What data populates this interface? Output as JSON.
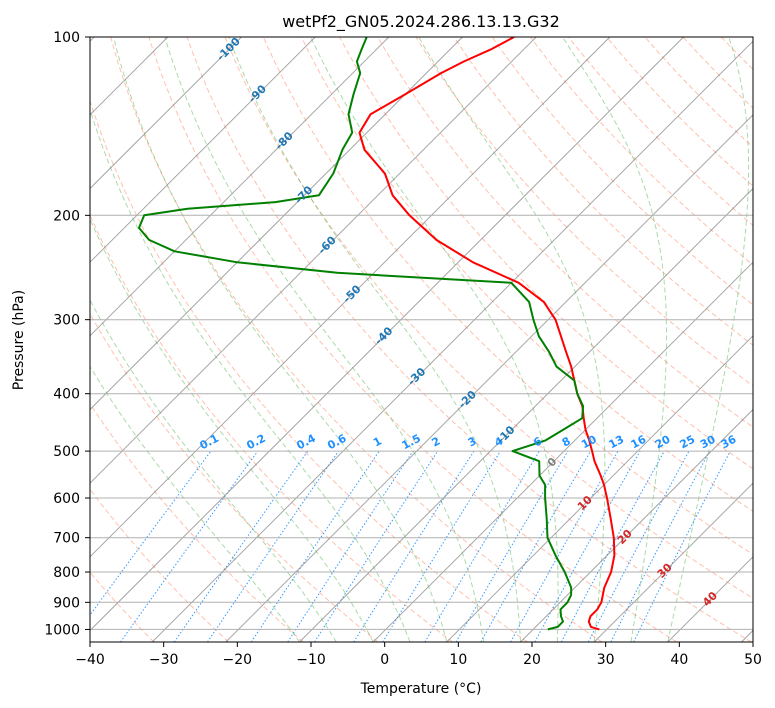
{
  "chart_data": {
    "type": "line",
    "subtype": "skew-t log-p",
    "title": "wetPf2_GN05.2024.286.13.13.G32",
    "xlabel": "Temperature (°C)",
    "ylabel": "Pressure (hPa)",
    "xlim": [
      -40,
      50
    ],
    "ylim": [
      1050,
      100
    ],
    "y_scale": "log",
    "x_ticks": [
      -40,
      -30,
      -20,
      -10,
      0,
      10,
      20,
      30,
      40,
      50
    ],
    "y_ticks": [
      1000,
      900,
      800,
      700,
      600,
      500,
      400,
      300,
      200,
      100
    ],
    "grid": true,
    "colors": {
      "temperature": "#ff0000",
      "dewpoint": "#008000",
      "dry_adiabat": "#ff8c69",
      "moist_adiabat": "#2ca02c",
      "mixing_ratio": "#1e90ff",
      "isotherm": "#808080",
      "label_blue": "#1f77b4",
      "label_red": "#d62728"
    },
    "series": [
      {
        "key": "temperature",
        "pressure": [
          1000,
          990,
          970,
          950,
          925,
          900,
          875,
          850,
          800,
          750,
          700,
          650,
          600,
          570,
          550,
          520,
          500,
          480,
          460,
          440,
          420,
          400,
          380,
          360,
          340,
          320,
          300,
          280,
          260,
          240,
          220,
          200,
          185,
          170,
          155,
          145,
          135,
          125,
          115,
          110,
          105,
          100
        ],
        "temperature": [
          29,
          27.5,
          26.5,
          26,
          26,
          25.6,
          24.8,
          24,
          22.8,
          21,
          18.5,
          15.5,
          12.2,
          10,
          8.3,
          5.5,
          3.8,
          2,
          0,
          -1.8,
          -3.6,
          -6,
          -8.2,
          -10.5,
          -13.2,
          -16,
          -19,
          -23,
          -29,
          -38,
          -46,
          -53,
          -58,
          -62,
          -68,
          -71,
          -72,
          -70,
          -68,
          -66.5,
          -64.5,
          -63
        ]
      },
      {
        "key": "dewpoint",
        "pressure": [
          1000,
          990,
          970,
          950,
          925,
          900,
          875,
          850,
          800,
          750,
          700,
          650,
          600,
          570,
          550,
          520,
          500,
          480,
          460,
          440,
          420,
          400,
          380,
          360,
          340,
          320,
          300,
          280,
          260,
          250,
          240,
          230,
          220,
          210,
          200,
          195,
          190,
          185,
          170,
          155,
          145,
          135,
          125,
          115,
          110,
          105,
          100
        ],
        "temperature": [
          22,
          23,
          23,
          22,
          21,
          21,
          20.5,
          19.5,
          16.5,
          13,
          9.5,
          6.8,
          3.8,
          2,
          0,
          -2,
          -7,
          -4,
          -3,
          -2,
          -3.5,
          -6,
          -8.2,
          -12.5,
          -15.5,
          -19,
          -22,
          -25,
          -30,
          -55,
          -70,
          -80,
          -85,
          -88,
          -89,
          -84,
          -73,
          -68,
          -69,
          -71,
          -72,
          -75,
          -77,
          -79,
          -81,
          -82,
          -83
        ]
      }
    ],
    "isotherm_labels": [
      "0",
      "10",
      "20",
      "30",
      "40"
    ],
    "isotherm_label_values": [
      0,
      10,
      20,
      30,
      40
    ],
    "isotherm_label_pressure": [
      523,
      613,
      699,
      797,
      890
    ],
    "upper_isotherm_labels": [
      "-100",
      "-90",
      "-80",
      "-70",
      "-60",
      "-50",
      "-40",
      "-30",
      "-20",
      "-10"
    ],
    "upper_isotherm_label_values": [
      -100,
      -90,
      -80,
      -70,
      -60,
      -50,
      -40,
      -30,
      -20,
      -10
    ],
    "upper_isotherm_label_pressure": [
      105,
      125,
      150,
      185,
      225,
      272,
      320,
      375,
      410,
      470
    ],
    "mixing_ratio_labels": [
      "0.1",
      "0.2",
      "0.4",
      "0.6",
      "1",
      "1.5",
      "2",
      "3",
      "4",
      "6",
      "8",
      "10",
      "13",
      "16",
      "20",
      "25",
      "30",
      "36"
    ],
    "mixing_ratio_values": [
      0.1,
      0.2,
      0.4,
      0.6,
      1,
      1.5,
      2,
      3,
      4,
      6,
      8,
      10,
      13,
      16,
      20,
      25,
      30,
      36
    ]
  }
}
